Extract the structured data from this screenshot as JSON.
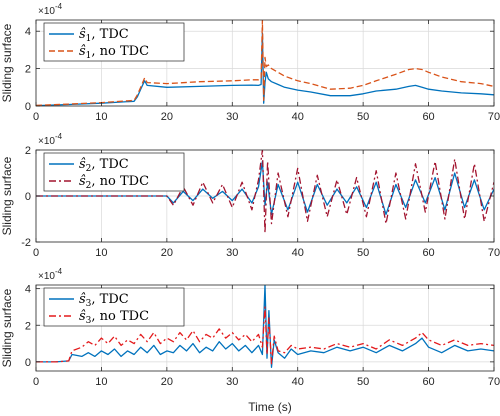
{
  "xlabel": "Time (s)",
  "colors": {
    "tdc": "#0072BD",
    "no_tdc_1": "#D95319",
    "no_tdc_2": "#A2142F",
    "no_tdc_3": "#E31A1C",
    "grid": "#d9d9d9",
    "axis": "#262626"
  },
  "chart_data": [
    {
      "type": "line",
      "ylabel": "Sliding surface",
      "exponent_label": "×10",
      "exponent_power": "-4",
      "xlim": [
        0,
        70
      ],
      "ylim": [
        0,
        4.6
      ],
      "xticks": [
        0,
        10,
        20,
        30,
        40,
        50,
        60,
        70
      ],
      "yticks": [
        0,
        2,
        4
      ],
      "grid": true,
      "legend_position": "top-left",
      "series": [
        {
          "name": "ŝ1, TDC",
          "style": "solid",
          "color": "#0072BD",
          "x": [
            0,
            5,
            10,
            15,
            15.5,
            16,
            16.6,
            17,
            20,
            25,
            30,
            33,
            34,
            34.4,
            34.6,
            34.8,
            35,
            35.2,
            35.5,
            36,
            37,
            38,
            40,
            42,
            45,
            48,
            50,
            52,
            55,
            57,
            58,
            59,
            60,
            62,
            65,
            68,
            70
          ],
          "y": [
            0.02,
            0.08,
            0.15,
            0.25,
            0.5,
            0.9,
            1.35,
            1.1,
            1.0,
            1.05,
            1.1,
            1.12,
            1.1,
            1.15,
            3.9,
            0.15,
            1.25,
            1.8,
            1.45,
            1.3,
            1.15,
            1.0,
            0.85,
            0.75,
            0.55,
            0.55,
            0.65,
            0.8,
            0.9,
            1.05,
            1.1,
            1.0,
            0.9,
            0.8,
            0.7,
            0.65,
            0.6
          ]
        },
        {
          "name": "ŝ1, no TDC",
          "style": "dashed",
          "color": "#D95319",
          "x": [
            0,
            5,
            10,
            15,
            15.5,
            16,
            16.6,
            17,
            20,
            25,
            30,
            33,
            34,
            34.4,
            34.6,
            34.8,
            35,
            35.2,
            35.5,
            36,
            37,
            38,
            40,
            42,
            45,
            48,
            50,
            52,
            55,
            57,
            58,
            59,
            60,
            62,
            65,
            68,
            70
          ],
          "y": [
            0.03,
            0.1,
            0.18,
            0.3,
            0.6,
            1.0,
            1.5,
            1.25,
            1.2,
            1.3,
            1.35,
            1.4,
            1.4,
            1.45,
            4.6,
            0.3,
            2.6,
            2.1,
            2.2,
            2.0,
            1.8,
            1.6,
            1.35,
            1.2,
            0.9,
            0.95,
            1.1,
            1.35,
            1.7,
            1.95,
            2.0,
            1.95,
            1.8,
            1.55,
            1.3,
            1.2,
            1.05
          ]
        }
      ]
    },
    {
      "type": "line",
      "ylabel": "Sliding surface",
      "exponent_label": "×10",
      "exponent_power": "-4",
      "xlim": [
        0,
        70
      ],
      "ylim": [
        -2,
        2
      ],
      "xticks": [
        0,
        10,
        20,
        30,
        40,
        50,
        60,
        70
      ],
      "yticks": [
        -2,
        0,
        2
      ],
      "grid": true,
      "legend_position": "top-left",
      "series": [
        {
          "name": "ŝ2, TDC",
          "style": "solid",
          "color": "#0072BD",
          "x": [
            0,
            5,
            10,
            15,
            20,
            21,
            22.5,
            24,
            25.5,
            27,
            28.5,
            30,
            31.5,
            33,
            34,
            34.6,
            35,
            35.4,
            36,
            37,
            38.5,
            40,
            41.5,
            43,
            44.5,
            46,
            47.5,
            49,
            50.5,
            52,
            53.5,
            55,
            56.5,
            58,
            59.5,
            61,
            62.5,
            64,
            65.5,
            67,
            68.5,
            70
          ],
          "y": [
            0,
            0,
            0,
            0,
            0,
            -0.3,
            0.2,
            -0.2,
            0.3,
            -0.1,
            0.2,
            -0.2,
            0.3,
            -0.3,
            0.4,
            1.5,
            -0.4,
            0.6,
            -0.8,
            0.5,
            -0.6,
            0.6,
            -0.7,
            0.5,
            -0.4,
            0.3,
            -0.3,
            0.4,
            -0.5,
            0.6,
            -0.8,
            0.5,
            -0.5,
            0.7,
            -0.3,
            0.8,
            -0.6,
            1.0,
            -0.5,
            0.7,
            -0.6,
            0.3
          ]
        },
        {
          "name": "ŝ2, no TDC",
          "style": "dashdot",
          "color": "#A2142F",
          "x": [
            0,
            5,
            10,
            15,
            20,
            21,
            22.5,
            24,
            25.5,
            27,
            28.5,
            30,
            31.5,
            33,
            34,
            34.6,
            35,
            35.4,
            36,
            37,
            38.5,
            40,
            41.5,
            43,
            44.5,
            46,
            47.5,
            49,
            50.5,
            52,
            53.5,
            55,
            56.5,
            58,
            59.5,
            61,
            62.5,
            64,
            65.5,
            67,
            68.5,
            70
          ],
          "y": [
            0,
            0,
            0,
            0,
            0,
            -0.4,
            0.4,
            -0.4,
            0.6,
            -0.3,
            0.5,
            -0.5,
            0.6,
            -0.6,
            0.7,
            2.0,
            -1.6,
            1.5,
            -1.2,
            1.0,
            -0.9,
            1.2,
            -1.1,
            0.9,
            -0.9,
            0.7,
            -0.8,
            0.8,
            -0.9,
            1.1,
            -1.2,
            1.0,
            -1.0,
            1.4,
            -0.7,
            1.5,
            -1.0,
            1.6,
            -1.0,
            1.4,
            -1.1,
            0.6
          ]
        }
      ]
    },
    {
      "type": "line",
      "ylabel": "Sliding surface",
      "exponent_label": "×10",
      "exponent_power": "-4",
      "xlim": [
        0,
        70
      ],
      "ylim": [
        -0.5,
        4.2
      ],
      "xticks": [
        0,
        10,
        20,
        30,
        40,
        50,
        60,
        70
      ],
      "yticks": [
        0,
        2,
        4
      ],
      "grid": true,
      "legend_position": "top-left",
      "series": [
        {
          "name": "ŝ3, TDC",
          "style": "solid",
          "color": "#0072BD",
          "x": [
            0,
            3,
            5,
            5.5,
            7,
            8,
            9,
            10,
            11,
            12,
            13,
            14,
            15,
            16,
            17,
            18,
            19,
            20,
            21,
            22,
            23,
            24,
            25,
            26,
            27,
            28,
            29,
            30,
            31,
            32,
            33,
            34,
            34.6,
            35,
            35.3,
            35.6,
            36,
            36.4,
            37,
            38,
            39,
            40,
            42,
            44,
            46,
            48,
            50,
            52,
            54,
            56,
            58,
            59,
            60,
            62,
            64,
            66,
            68,
            70
          ],
          "y": [
            0,
            0,
            0.05,
            0.4,
            0.3,
            0.5,
            0.3,
            0.6,
            0.4,
            0.7,
            0.3,
            0.6,
            0.4,
            0.8,
            0.5,
            0.9,
            0.4,
            0.6,
            0.5,
            0.9,
            0.6,
            1.0,
            0.5,
            0.8,
            0.6,
            1.1,
            0.7,
            1.0,
            0.6,
            0.9,
            0.5,
            0.9,
            0.4,
            4.2,
            0.2,
            2.8,
            -0.3,
            1.2,
            0.5,
            0.2,
            0.7,
            0.4,
            0.6,
            0.5,
            0.8,
            0.6,
            0.8,
            0.5,
            0.9,
            0.6,
            1.0,
            1.3,
            0.8,
            0.5,
            0.9,
            0.6,
            0.7,
            0.6
          ]
        },
        {
          "name": "ŝ3, no TDC",
          "style": "dashdot",
          "color": "#E31A1C",
          "x": [
            0,
            3,
            5,
            5.5,
            7,
            8,
            9,
            10,
            11,
            12,
            13,
            14,
            15,
            16,
            17,
            18,
            19,
            20,
            21,
            22,
            23,
            24,
            25,
            26,
            27,
            28,
            29,
            30,
            31,
            32,
            33,
            34,
            34.6,
            35,
            35.3,
            35.6,
            36,
            36.4,
            37,
            38,
            39,
            40,
            42,
            44,
            46,
            48,
            50,
            52,
            54,
            56,
            58,
            59,
            60,
            62,
            64,
            66,
            68,
            70
          ],
          "y": [
            0,
            0,
            0.05,
            0.6,
            0.8,
            1.1,
            0.9,
            1.3,
            1.0,
            1.4,
            0.9,
            1.2,
            1.0,
            1.5,
            1.1,
            1.6,
            1.0,
            1.3,
            1.1,
            1.6,
            1.2,
            1.7,
            1.1,
            1.5,
            1.3,
            1.8,
            1.3,
            1.6,
            1.2,
            1.5,
            1.1,
            1.5,
            0.8,
            3.0,
            0.4,
            2.4,
            -0.1,
            1.4,
            0.6,
            0.5,
            0.9,
            0.7,
            0.8,
            0.7,
            1.0,
            0.8,
            1.0,
            0.7,
            1.2,
            0.9,
            1.3,
            1.6,
            1.2,
            0.9,
            1.2,
            0.9,
            1.0,
            0.9
          ]
        }
      ]
    }
  ]
}
